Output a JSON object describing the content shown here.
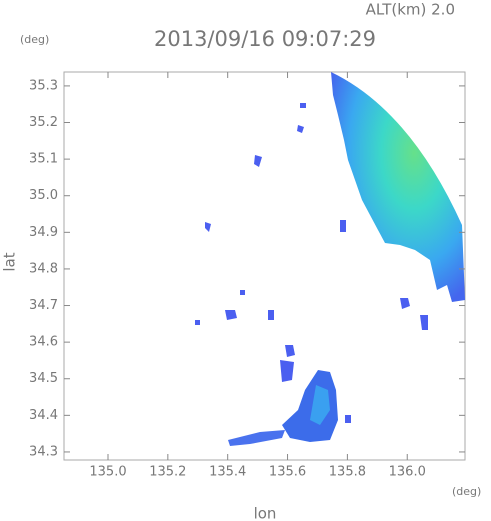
{
  "chart_data": {
    "type": "radar-map",
    "title": "2013/09/16 09:07:29",
    "subtitle": "ALT(km) 2.0",
    "x_unit": "(deg)",
    "y_unit": "(deg)",
    "xlabel": "lon",
    "ylabel": "lat",
    "xlim": [
      134.853,
      136.193
    ],
    "ylim": [
      34.278,
      35.338
    ],
    "xticks": [
      {
        "value": 135,
        "label": "135.0"
      },
      {
        "value": 135.2,
        "label": "135.2"
      },
      {
        "value": 135.4,
        "label": "135.4"
      },
      {
        "value": 135.6,
        "label": "135.6"
      },
      {
        "value": 135.8,
        "label": "135.8"
      },
      {
        "value": 136,
        "label": "136.0"
      }
    ],
    "yticks": [
      {
        "value": 34.3,
        "label": "34.3"
      },
      {
        "value": 34.4,
        "label": "34.4"
      },
      {
        "value": 34.5,
        "label": "34.5"
      },
      {
        "value": 34.6,
        "label": "34.6"
      },
      {
        "value": 34.7,
        "label": "34.7"
      },
      {
        "value": 34.8,
        "label": "34.8"
      },
      {
        "value": 34.9,
        "label": "34.9"
      },
      {
        "value": 35,
        "label": "35.0"
      },
      {
        "value": 35.1,
        "label": "35.1"
      },
      {
        "value": 35.2,
        "label": "35.2"
      },
      {
        "value": 35.3,
        "label": "35.3"
      }
    ]
  }
}
